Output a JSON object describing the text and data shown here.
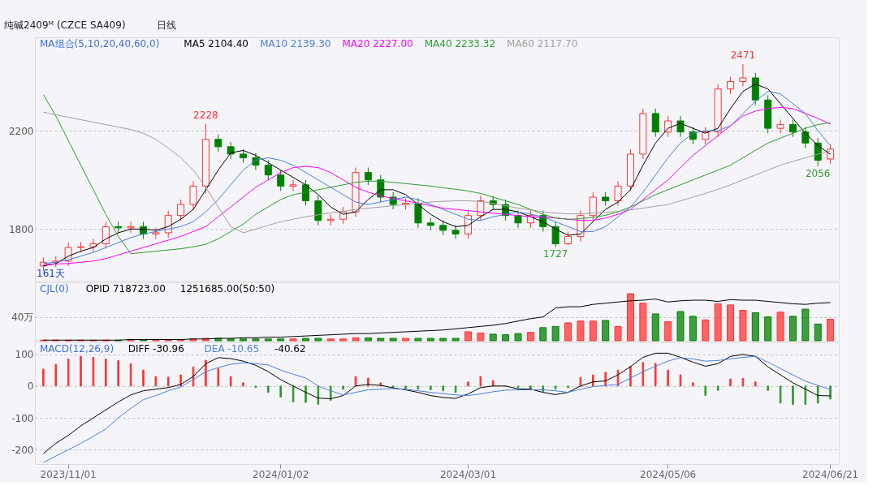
{
  "chart_data": [
    {
      "type": "candlestick",
      "title": "纯碱2409ᴹ (CZCE SA409)",
      "subtitle": "日线",
      "legend_title": "MA组合(5,10,20,40,60,0)",
      "legend": "top left",
      "grid": "y",
      "tick_labels": "y",
      "categories": [
        null,
        null,
        "2023/11/01",
        null,
        null,
        null,
        null,
        null,
        null,
        null,
        null,
        null,
        null,
        null,
        null,
        null,
        null,
        null,
        null,
        "2024/01/02",
        null,
        null,
        null,
        null,
        null,
        null,
        null,
        null,
        null,
        null,
        null,
        null,
        null,
        null,
        "2024/03/01",
        null,
        null,
        null,
        null,
        null,
        null,
        null,
        null,
        null,
        null,
        null,
        null,
        null,
        null,
        null,
        "2024/05/06",
        null,
        null,
        null,
        null,
        null,
        null,
        null,
        null,
        null,
        null,
        null,
        null,
        "2024/06/21"
      ],
      "ylim": [
        1590,
        2580
      ],
      "yticks": [
        1800,
        2200
      ],
      "ohlc": [
        [
          1650,
          1685,
          1630,
          1665
        ],
        [
          1665,
          1690,
          1645,
          1670
        ],
        [
          1670,
          1745,
          1650,
          1725
        ],
        [
          1725,
          1748,
          1705,
          1728
        ],
        [
          1728,
          1760,
          1708,
          1740
        ],
        [
          1740,
          1830,
          1720,
          1810
        ],
        [
          1810,
          1830,
          1785,
          1805
        ],
        [
          1805,
          1830,
          1785,
          1810
        ],
        [
          1810,
          1830,
          1760,
          1780
        ],
        [
          1780,
          1805,
          1760,
          1785
        ],
        [
          1785,
          1875,
          1765,
          1855
        ],
        [
          1855,
          1920,
          1835,
          1900
        ],
        [
          1900,
          1995,
          1880,
          1975
        ],
        [
          1975,
          2228,
          1945,
          2165
        ],
        [
          2165,
          2185,
          2115,
          2135
        ],
        [
          2135,
          2155,
          2085,
          2105
        ],
        [
          2105,
          2125,
          2070,
          2090
        ],
        [
          2090,
          2110,
          2040,
          2060
        ],
        [
          2060,
          2080,
          2000,
          2020
        ],
        [
          2020,
          2040,
          1955,
          1975
        ],
        [
          1975,
          2000,
          1955,
          1980
        ],
        [
          1980,
          2000,
          1895,
          1915
        ],
        [
          1915,
          1935,
          1815,
          1835
        ],
        [
          1835,
          1860,
          1815,
          1840
        ],
        [
          1840,
          1890,
          1820,
          1870
        ],
        [
          1870,
          2050,
          1850,
          2030
        ],
        [
          2030,
          2050,
          1980,
          2000
        ],
        [
          2000,
          2020,
          1910,
          1930
        ],
        [
          1930,
          1950,
          1880,
          1900
        ],
        [
          1900,
          1925,
          1880,
          1905
        ],
        [
          1905,
          1925,
          1805,
          1825
        ],
        [
          1825,
          1845,
          1795,
          1815
        ],
        [
          1815,
          1835,
          1775,
          1795
        ],
        [
          1795,
          1815,
          1760,
          1780
        ],
        [
          1780,
          1875,
          1760,
          1855
        ],
        [
          1855,
          1935,
          1835,
          1915
        ],
        [
          1915,
          1935,
          1880,
          1900
        ],
        [
          1900,
          1920,
          1835,
          1855
        ],
        [
          1855,
          1875,
          1805,
          1825
        ],
        [
          1825,
          1875,
          1805,
          1855
        ],
        [
          1855,
          1875,
          1790,
          1810
        ],
        [
          1810,
          1830,
          1727,
          1740
        ],
        [
          1740,
          1790,
          1735,
          1770
        ],
        [
          1770,
          1875,
          1750,
          1855
        ],
        [
          1855,
          1950,
          1835,
          1930
        ],
        [
          1930,
          1950,
          1895,
          1915
        ],
        [
          1915,
          1995,
          1895,
          1975
        ],
        [
          1975,
          2125,
          1955,
          2105
        ],
        [
          2105,
          2290,
          2085,
          2270
        ],
        [
          2270,
          2290,
          2175,
          2195
        ],
        [
          2195,
          2260,
          2175,
          2240
        ],
        [
          2240,
          2260,
          2175,
          2195
        ],
        [
          2195,
          2215,
          2145,
          2165
        ],
        [
          2165,
          2215,
          2145,
          2195
        ],
        [
          2195,
          2390,
          2175,
          2370
        ],
        [
          2370,
          2420,
          2350,
          2400
        ],
        [
          2400,
          2471,
          2380,
          2415
        ],
        [
          2415,
          2435,
          2305,
          2325
        ],
        [
          2325,
          2345,
          2190,
          2210
        ],
        [
          2210,
          2245,
          2190,
          2225
        ],
        [
          2225,
          2245,
          2175,
          2195
        ],
        [
          2195,
          2215,
          2130,
          2150
        ],
        [
          2150,
          2170,
          2056,
          2080
        ],
        [
          2085,
          2145,
          2065,
          2125
        ]
      ],
      "colors": [
        "#ff3333",
        "#ff3333",
        "#ff3333",
        "#ff3333",
        "#ff3333",
        "#ff3333",
        "#008000",
        "#ff3333",
        "#008000",
        "#ff3333",
        "#ff3333",
        "#ff3333",
        "#ff3333",
        "#ff3333",
        "#008000",
        "#008000",
        "#008000",
        "#008000",
        "#008000",
        "#008000",
        "#ff3333",
        "#008000",
        "#008000",
        "#ff3333",
        "#ff3333",
        "#ff3333",
        "#008000",
        "#008000",
        "#008000",
        "#ff3333",
        "#008000",
        "#008000",
        "#008000",
        "#008000",
        "#ff3333",
        "#ff3333",
        "#008000",
        "#008000",
        "#008000",
        "#ff3333",
        "#008000",
        "#008000",
        "#ff3333",
        "#ff3333",
        "#ff3333",
        "#008000",
        "#ff3333",
        "#ff3333",
        "#ff3333",
        "#008000",
        "#ff3333",
        "#008000",
        "#008000",
        "#ff3333",
        "#ff3333",
        "#ff3333",
        "#ff3333",
        "#008000",
        "#008000",
        "#ff3333",
        "#008000",
        "#008000",
        "#008000",
        "#ff3333"
      ],
      "series": [
        {
          "type": "line",
          "name": "MA5 2104.40",
          "color": "#000000",
          "values": [
            1650,
            1660,
            1690,
            1710,
            1725,
            1760,
            1785,
            1800,
            1800,
            1795,
            1810,
            1840,
            1880,
            1960,
            2040,
            2110,
            2120,
            2100,
            2070,
            2040,
            2010,
            1980,
            1940,
            1890,
            1860,
            1870,
            1920,
            1960,
            1960,
            1940,
            1900,
            1860,
            1830,
            1810,
            1815,
            1850,
            1880,
            1880,
            1870,
            1850,
            1830,
            1800,
            1775,
            1780,
            1830,
            1880,
            1910,
            1960,
            2060,
            2150,
            2210,
            2230,
            2210,
            2190,
            2210,
            2290,
            2360,
            2390,
            2370,
            2310,
            2250,
            2190,
            2140,
            2104
          ]
        },
        {
          "type": "line",
          "name": "MA10 2139.30",
          "color": "#4a7fe0",
          "values": [
            1660,
            1665,
            1675,
            1690,
            1705,
            1725,
            1745,
            1765,
            1780,
            1790,
            1800,
            1810,
            1830,
            1870,
            1920,
            1980,
            2040,
            2080,
            2090,
            2080,
            2060,
            2030,
            2000,
            1970,
            1940,
            1910,
            1900,
            1910,
            1920,
            1930,
            1920,
            1900,
            1880,
            1860,
            1840,
            1835,
            1850,
            1860,
            1870,
            1860,
            1850,
            1830,
            1810,
            1790,
            1790,
            1810,
            1850,
            1890,
            1950,
            2020,
            2090,
            2150,
            2190,
            2200,
            2200,
            2220,
            2270,
            2320,
            2360,
            2350,
            2310,
            2270,
            2200,
            2139
          ]
        },
        {
          "type": "line",
          "name": "MA20 2227.00",
          "color": "#ff00ff",
          "values": [
            1655,
            1658,
            1660,
            1665,
            1670,
            1680,
            1695,
            1710,
            1725,
            1740,
            1755,
            1770,
            1790,
            1810,
            1850,
            1890,
            1930,
            1970,
            2000,
            2030,
            2050,
            2055,
            2050,
            2030,
            2000,
            1970,
            1950,
            1935,
            1925,
            1915,
            1905,
            1895,
            1885,
            1880,
            1875,
            1870,
            1865,
            1860,
            1855,
            1850,
            1848,
            1845,
            1840,
            1835,
            1835,
            1845,
            1860,
            1880,
            1920,
            1960,
            2000,
            2050,
            2100,
            2140,
            2180,
            2220,
            2260,
            2280,
            2290,
            2295,
            2290,
            2270,
            2250,
            2227
          ]
        },
        {
          "type": "line",
          "name": "MA40 2233.32",
          "color": "#2e9a2e",
          "values": [
            2347,
            2260,
            2160,
            2060,
            1960,
            1860,
            1770,
            1700,
            1705,
            1710,
            1715,
            1720,
            1728,
            1738,
            1760,
            1790,
            1820,
            1860,
            1890,
            1920,
            1940,
            1950,
            1960,
            1970,
            1980,
            1990,
            1995,
            1995,
            1990,
            1985,
            1980,
            1975,
            1968,
            1962,
            1955,
            1945,
            1930,
            1915,
            1900,
            1880,
            1860,
            1845,
            1840,
            1842,
            1848,
            1856,
            1870,
            1890,
            1915,
            1940,
            1960,
            1980,
            2000,
            2020,
            2040,
            2060,
            2090,
            2120,
            2150,
            2170,
            2190,
            2210,
            2225,
            2233
          ]
        },
        {
          "type": "line",
          "name": "MA60 2117.70",
          "color": "#a0a0a0",
          "values": [
            2276,
            2265,
            2255,
            2245,
            2235,
            2225,
            2215,
            2205,
            2190,
            2165,
            2130,
            2090,
            2040,
            1970,
            1890,
            1810,
            1785,
            1800,
            1815,
            1830,
            1840,
            1850,
            1858,
            1866,
            1872,
            1880,
            1885,
            1890,
            1895,
            1900,
            1905,
            1910,
            1913,
            1915,
            1915,
            1912,
            1905,
            1895,
            1885,
            1878,
            1870,
            1865,
            1862,
            1862,
            1865,
            1868,
            1872,
            1878,
            1885,
            1893,
            1900,
            1915,
            1930,
            1945,
            1962,
            1980,
            2000,
            2020,
            2040,
            2060,
            2075,
            2090,
            2105,
            2118
          ]
        }
      ],
      "annotations": [
        {
          "text": "2228",
          "y": 2228
        },
        {
          "text": "1727",
          "y": 1727
        },
        {
          "text": "2471",
          "y": 2471
        },
        {
          "text": "2056",
          "y": 2056
        },
        "161天"
      ]
    },
    {
      "type": "bar",
      "legend_title": "CJL(0)",
      "legend": "top left",
      "grid": "y",
      "tick_labels": "y",
      "categories": [
        null,
        null,
        "2023/11/01",
        null,
        null,
        null,
        null,
        null,
        null,
        null,
        null,
        null,
        null,
        null,
        null,
        null,
        null,
        null,
        null,
        "2024/01/02",
        null,
        null,
        null,
        null,
        null,
        null,
        null,
        null,
        null,
        null,
        null,
        null,
        null,
        null,
        "2024/03/01",
        null,
        null,
        null,
        null,
        null,
        null,
        null,
        null,
        null,
        null,
        null,
        null,
        null,
        null,
        null,
        "2024/05/06",
        null,
        null,
        null,
        null,
        null,
        null,
        null,
        null,
        null,
        null,
        null,
        null,
        "2024/06/21"
      ],
      "ylim": [
        0,
        98
      ],
      "yticks": [
        {
          "value": 40,
          "label": "40万"
        }
      ],
      "series": [
        {
          "type": "bar",
          "colors": [
            "#ff3333",
            "#ff3333",
            "#ff3333",
            "#ff3333",
            "#ff3333",
            "#ff3333",
            "#008000",
            "#ff3333",
            "#008000",
            "#ff3333",
            "#ff3333",
            "#ff3333",
            "#ff3333",
            "#ff3333",
            "#008000",
            "#008000",
            "#008000",
            "#008000",
            "#008000",
            "#008000",
            "#ff3333",
            "#008000",
            "#008000",
            "#ff3333",
            "#ff3333",
            "#ff3333",
            "#008000",
            "#008000",
            "#008000",
            "#ff3333",
            "#008000",
            "#008000",
            "#008000",
            "#008000",
            "#ff3333",
            "#ff3333",
            "#008000",
            "#008000",
            "#008000",
            "#ff3333",
            "#008000",
            "#008000",
            "#ff3333",
            "#ff3333",
            "#ff3333",
            "#008000",
            "#ff3333",
            "#ff3333",
            "#ff3333",
            "#008000",
            "#ff3333",
            "#008000",
            "#008000",
            "#ff3333",
            "#ff3333",
            "#ff3333",
            "#ff3333",
            "#008000",
            "#008000",
            "#ff3333",
            "#008000",
            "#008000",
            "#008000",
            "#ff3333"
          ],
          "values": [
            1,
            1,
            1,
            1,
            1,
            1,
            1,
            2,
            2,
            2,
            2,
            2,
            3,
            4,
            4,
            3,
            3,
            3,
            3,
            3,
            3,
            4,
            4,
            3,
            3,
            5,
            5,
            4,
            4,
            4,
            4,
            4,
            4,
            4,
            15,
            13,
            11,
            10,
            12,
            14,
            22,
            24,
            30,
            33,
            33,
            34,
            24,
            79,
            63,
            45,
            32,
            49,
            41,
            35,
            62,
            60,
            51,
            47,
            40,
            48,
            41,
            53,
            28,
            36
          ]
        },
        {
          "type": "line",
          "name": "OPID 718723.00",
          "color": "#000000",
          "values": [
            1,
            1,
            1,
            1,
            1,
            1,
            1,
            2,
            2,
            2,
            2,
            2,
            3,
            3,
            4,
            4,
            5,
            5,
            6,
            6,
            7,
            8,
            9,
            10,
            11,
            12,
            12,
            13,
            14,
            15,
            16,
            17,
            18,
            20,
            22,
            24,
            26,
            29,
            33,
            37,
            40,
            55,
            57,
            57,
            61,
            63,
            65,
            67,
            68,
            70,
            65,
            67,
            68,
            68,
            66,
            69,
            68,
            68,
            66,
            64,
            62,
            61,
            63,
            64
          ]
        }
      ],
      "annotations": [
        "1251685.00(50:50)"
      ]
    },
    {
      "type": "bar",
      "legend_title": "MACD(12,26,9)",
      "legend": "top left",
      "grid": "y",
      "categories": [
        null,
        null,
        "2023/11/01",
        null,
        null,
        null,
        null,
        null,
        null,
        null,
        null,
        null,
        null,
        null,
        null,
        null,
        null,
        null,
        null,
        "2024/01/02",
        null,
        null,
        null,
        null,
        null,
        null,
        null,
        null,
        null,
        null,
        null,
        null,
        null,
        null,
        "2024/03/01",
        null,
        null,
        null,
        null,
        null,
        null,
        null,
        null,
        null,
        null,
        null,
        null,
        null,
        null,
        null,
        "2024/05/06",
        null,
        null,
        null,
        null,
        null,
        null,
        null,
        null,
        null,
        null,
        null,
        null,
        "2024/06/21"
      ],
      "ylim": [
        -245,
        137
      ],
      "yticks": [
        100,
        0,
        -100,
        -200
      ],
      "series": [
        {
          "type": "bar",
          "colors": [
            "#ff3333",
            "#ff3333",
            "#ff3333",
            "#ff3333",
            "#ff3333",
            "#ff3333",
            "#ff3333",
            "#ff3333",
            "#ff3333",
            "#ff3333",
            "#ff3333",
            "#ff3333",
            "#ff3333",
            "#ff3333",
            "#ff3333",
            "#ff3333",
            "#ff3333",
            "#2e9a2e",
            "#2e9a2e",
            "#2e9a2e",
            "#2e9a2e",
            "#2e9a2e",
            "#2e9a2e",
            "#2e9a2e",
            "#2e9a2e",
            "#ff3333",
            "#ff3333",
            "#ff3333",
            "#2e9a2e",
            "#2e9a2e",
            "#2e9a2e",
            "#2e9a2e",
            "#2e9a2e",
            "#2e9a2e",
            "#ff3333",
            "#ff3333",
            "#ff3333",
            "#ff3333",
            "#2e9a2e",
            "#2e9a2e",
            "#2e9a2e",
            "#2e9a2e",
            "#2e9a2e",
            "#ff3333",
            "#ff3333",
            "#ff3333",
            "#ff3333",
            "#ff3333",
            "#ff3333",
            "#ff3333",
            "#ff3333",
            "#ff3333",
            "#ff3333",
            "#2e9a2e",
            "#2e9a2e",
            "#ff3333",
            "#ff3333",
            "#ff3333",
            "#2e9a2e",
            "#2e9a2e",
            "#2e9a2e",
            "#2e9a2e",
            "#2e9a2e",
            "#2e9a2e"
          ],
          "values": [
            53,
            68,
            85,
            93,
            90,
            85,
            80,
            70,
            50,
            30,
            28,
            35,
            60,
            81,
            55,
            30,
            10,
            -5,
            -20,
            -35,
            -50,
            -52,
            -57,
            -45,
            -10,
            30,
            25,
            10,
            -5,
            -8,
            -10,
            -12,
            -15,
            -20,
            13,
            30,
            17,
            0,
            -5,
            -10,
            -17,
            -10,
            -5,
            27,
            35,
            43,
            50,
            62,
            74,
            71,
            50,
            35,
            10,
            -30,
            -14,
            22,
            24,
            13,
            -14,
            -54,
            -58,
            -58,
            -54,
            -41
          ]
        },
        {
          "type": "line",
          "name": "DIFF -30.96",
          "color": "#000000",
          "values": [
            -212,
            -180,
            -155,
            -125,
            -100,
            -75,
            -50,
            -28,
            -15,
            -10,
            -5,
            5,
            30,
            70,
            89,
            86,
            78,
            65,
            45,
            20,
            0,
            -20,
            -38,
            -40,
            -30,
            0,
            5,
            2,
            -6,
            -12,
            -20,
            -30,
            -36,
            -39,
            -25,
            -5,
            0,
            0,
            -9,
            -10,
            -20,
            -27,
            -20,
            0,
            13,
            16,
            35,
            61,
            90,
            103,
            103,
            90,
            75,
            62,
            70,
            93,
            99,
            93,
            60,
            35,
            10,
            -10,
            -30,
            -31
          ]
        },
        {
          "type": "line",
          "name": "DEA -10.65",
          "color": "#4a7fe0",
          "values": [
            -240,
            -220,
            -200,
            -180,
            -158,
            -135,
            -100,
            -70,
            -43,
            -30,
            -15,
            -3,
            20,
            45,
            58,
            68,
            73,
            70,
            66,
            50,
            37,
            25,
            0,
            -15,
            -28,
            -20,
            -12,
            -10,
            -8,
            -10,
            -15,
            -20,
            -24,
            -28,
            -30,
            -25,
            -18,
            -13,
            -12,
            -12,
            -12,
            -15,
            -20,
            -10,
            -2,
            2,
            5,
            25,
            45,
            62,
            78,
            89,
            85,
            78,
            80,
            85,
            90,
            93,
            75,
            55,
            35,
            15,
            2,
            -11
          ]
        }
      ],
      "annotations": [
        "-40.62"
      ]
    }
  ]
}
